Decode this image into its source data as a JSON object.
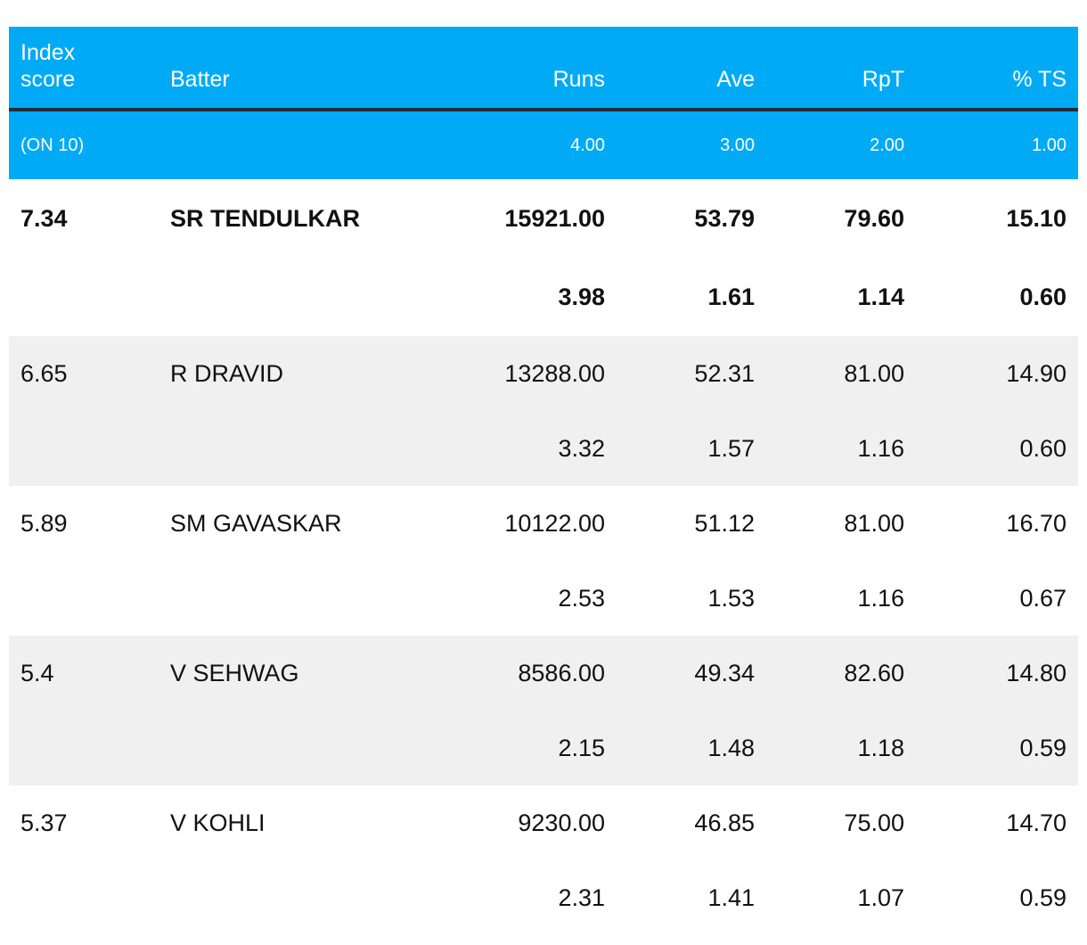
{
  "headers": {
    "index_line1": "Index",
    "index_line2": "score",
    "batter": "Batter",
    "runs": "Runs",
    "ave": "Ave",
    "rpt": "RpT",
    "ts": "% TS"
  },
  "weights": {
    "label": "(ON 10)",
    "runs": "4.00",
    "ave": "3.00",
    "rpt": "2.00",
    "ts": "1.00"
  },
  "rows": [
    {
      "index": "7.34",
      "batter": "SR TENDULKAR",
      "runs": "15921.00",
      "ave": "53.79",
      "rpt": "79.60",
      "ts": "15.10",
      "runs_score": "3.98",
      "ave_score": "1.61",
      "rpt_score": "1.14",
      "ts_score": "0.60"
    },
    {
      "index": "6.65",
      "batter": "R DRAVID",
      "runs": "13288.00",
      "ave": "52.31",
      "rpt": "81.00",
      "ts": "14.90",
      "runs_score": "3.32",
      "ave_score": "1.57",
      "rpt_score": "1.16",
      "ts_score": "0.60"
    },
    {
      "index": "5.89",
      "batter": "SM GAVASKAR",
      "runs": "10122.00",
      "ave": "51.12",
      "rpt": "81.00",
      "ts": "16.70",
      "runs_score": "2.53",
      "ave_score": "1.53",
      "rpt_score": "1.16",
      "ts_score": "0.67"
    },
    {
      "index": "5.4",
      "batter": "V SEHWAG",
      "runs": "8586.00",
      "ave": "49.34",
      "rpt": "82.60",
      "ts": "14.80",
      "runs_score": "2.15",
      "ave_score": "1.48",
      "rpt_score": "1.18",
      "ts_score": "0.59"
    },
    {
      "index": "5.37",
      "batter": "V KOHLI",
      "runs": "9230.00",
      "ave": "46.85",
      "rpt": "75.00",
      "ts": "14.70",
      "runs_score": "2.31",
      "ave_score": "1.41",
      "rpt_score": "1.07",
      "ts_score": "0.59"
    }
  ],
  "colors": {
    "header_bg": "#00aaf5",
    "header_text": "#ffffff",
    "header_rule": "#1f2d3a",
    "shaded_row_bg": "#f0f0f0",
    "body_text": "#111111"
  }
}
